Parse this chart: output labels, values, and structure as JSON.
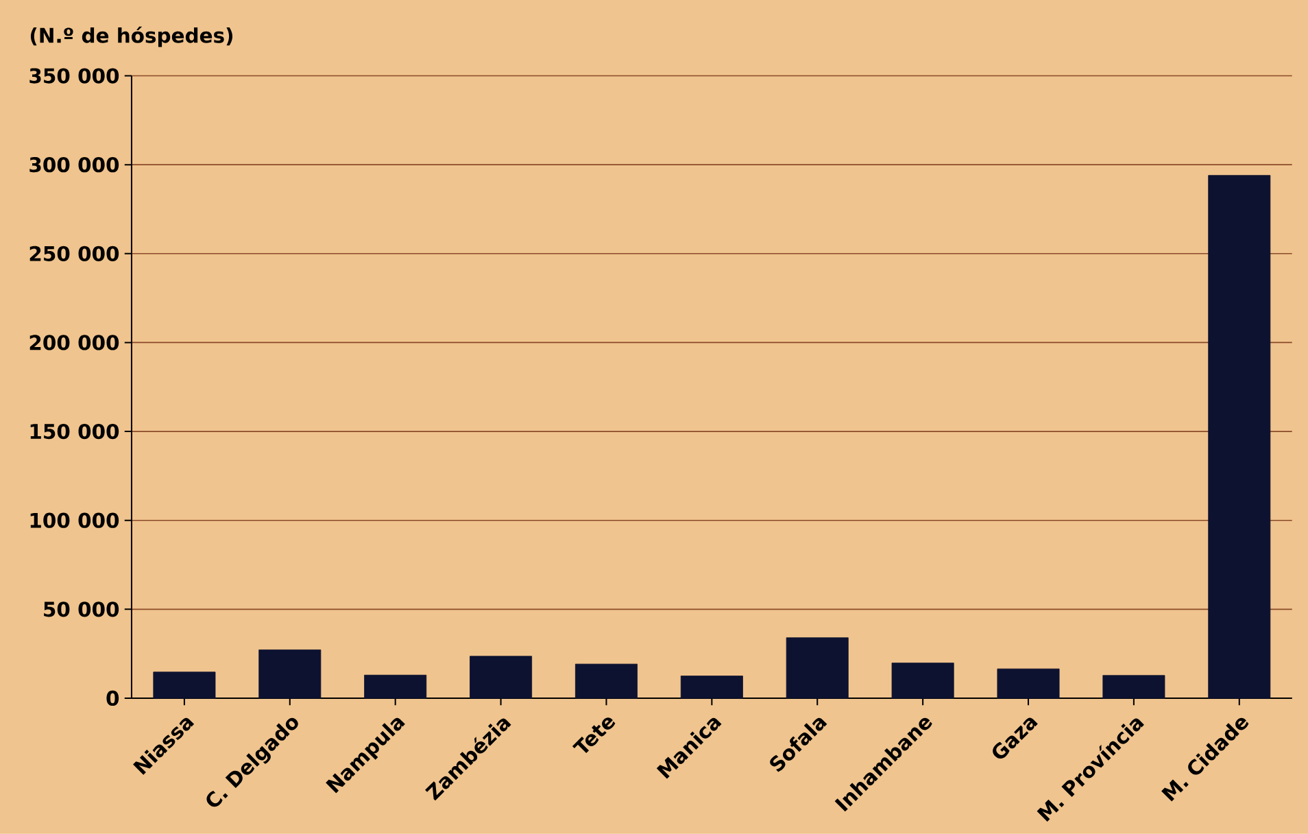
{
  "chart_data": {
    "type": "bar",
    "ylabel": "(N.º de hóspedes)",
    "categories": [
      "Niassa",
      "C. Delgado",
      "Nampula",
      "Zambézia",
      "Tete",
      "Manica",
      "Sofala",
      "Inhambane",
      "Gaza",
      "M. Província",
      "M. Cidade"
    ],
    "values": [
      14700,
      27200,
      13000,
      23600,
      19200,
      12500,
      34000,
      19800,
      16500,
      12800,
      294000
    ],
    "color": "#0d1230",
    "ylim": [
      0,
      350000
    ],
    "yticks": [
      {
        "value": 0,
        "label": "0"
      },
      {
        "value": 50000,
        "label": "50 000"
      },
      {
        "value": 100000,
        "label": "100 000"
      },
      {
        "value": 150000,
        "label": "150 000"
      },
      {
        "value": 200000,
        "label": "200 000"
      },
      {
        "value": 250000,
        "label": "250 000"
      },
      {
        "value": 300000,
        "label": "300 000"
      },
      {
        "value": 350000,
        "label": "350 000"
      }
    ],
    "grid": "y"
  }
}
